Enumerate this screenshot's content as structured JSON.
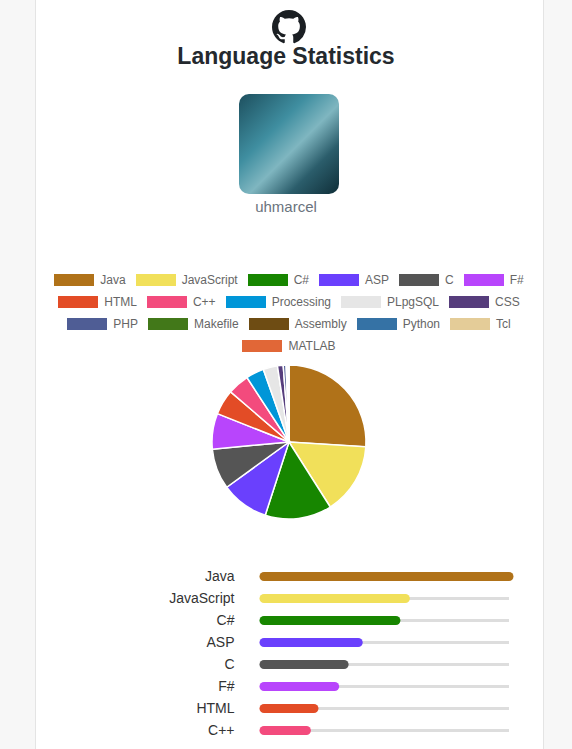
{
  "header": {
    "title": "Language Statistics",
    "username": "uhmarcel"
  },
  "chart_data": [
    {
      "type": "pie",
      "categories": [
        "Java",
        "JavaScript",
        "C#",
        "ASP",
        "C",
        "F#",
        "HTML",
        "C++",
        "Processing",
        "PLpgSQL",
        "CSS",
        "PHP",
        "Makefile",
        "Assembly",
        "Python",
        "Tcl",
        "MATLAB"
      ],
      "values": [
        26,
        15,
        14,
        10,
        8.5,
        7.5,
        5.3,
        4.5,
        3.8,
        3,
        1.2,
        0.6,
        0.2,
        0.15,
        0.1,
        0.1,
        0.05
      ],
      "colors": [
        "#b07219",
        "#f1e05a",
        "#178600",
        "#6a40fd",
        "#555555",
        "#b845fc",
        "#e34c26",
        "#f34b7d",
        "#0096d8",
        "#e6e6e6",
        "#563d7c",
        "#4f5d95",
        "#427819",
        "#6e4c13",
        "#3572a5",
        "#e4cc98",
        "#e16737"
      ],
      "legend": "top"
    },
    {
      "type": "bar",
      "orientation": "horizontal",
      "categories": [
        "Java",
        "JavaScript",
        "C#",
        "ASP",
        "C",
        "F#",
        "HTML",
        "C++"
      ],
      "values": [
        26,
        15,
        14,
        10,
        8.5,
        7.5,
        5.3,
        4.5
      ],
      "colors": [
        "#b07219",
        "#f1e05a",
        "#178600",
        "#6a40fd",
        "#555555",
        "#b845fc",
        "#e34c26",
        "#f34b7d"
      ],
      "xlim": [
        0,
        26
      ],
      "tick_labels": "y"
    }
  ]
}
